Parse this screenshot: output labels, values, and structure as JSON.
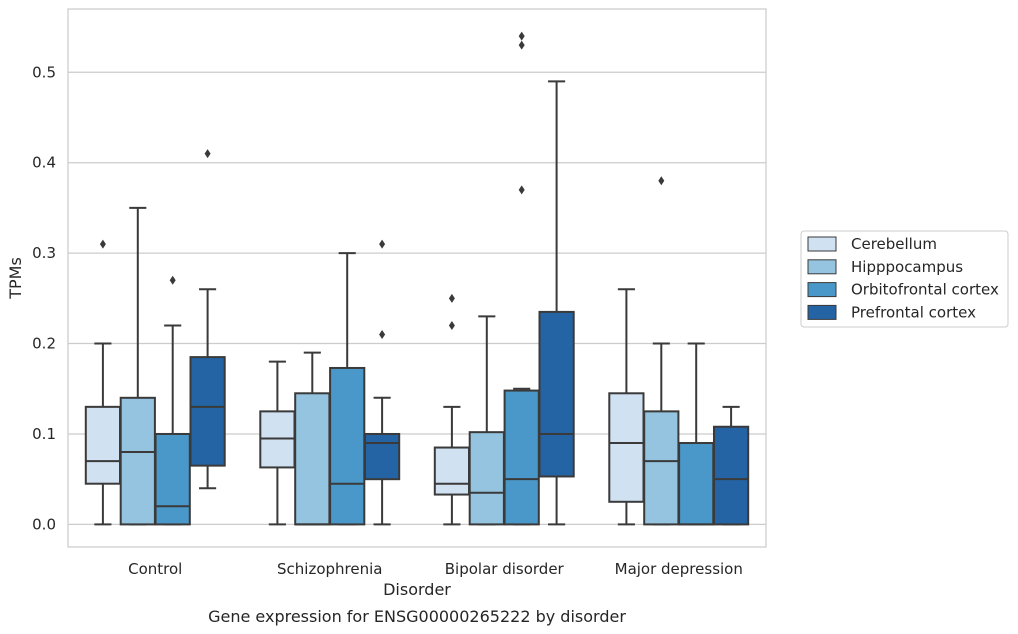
{
  "chart_data": {
    "type": "box",
    "title": "Gene expression for ENSG00000265222 by disorder",
    "xlabel": "Disorder",
    "ylabel": "TPMs",
    "ylim": [
      -0.025,
      0.57
    ],
    "yticks": [
      "0.0",
      "0.1",
      "0.2",
      "0.3",
      "0.4",
      "0.5"
    ],
    "categories": [
      "Control",
      "Schizophrenia",
      "Bipolar disorder",
      "Major depression"
    ],
    "grid": "horizontal",
    "legend_position": "right",
    "series": [
      {
        "name": "Cerebellum",
        "color": "#d0e1f2",
        "boxes": [
          {
            "whislo": 0.0,
            "q1": 0.045,
            "med": 0.07,
            "q3": 0.13,
            "whishi": 0.2,
            "fliers": [
              0.31
            ]
          },
          {
            "whislo": 0.0,
            "q1": 0.063,
            "med": 0.095,
            "q3": 0.125,
            "whishi": 0.18,
            "fliers": []
          },
          {
            "whislo": 0.0,
            "q1": 0.033,
            "med": 0.045,
            "q3": 0.085,
            "whishi": 0.13,
            "fliers": [
              0.22,
              0.25
            ]
          },
          {
            "whislo": 0.0,
            "q1": 0.025,
            "med": 0.09,
            "q3": 0.145,
            "whishi": 0.26,
            "fliers": []
          }
        ]
      },
      {
        "name": "Hipppocampus",
        "color": "#94c4df",
        "boxes": [
          {
            "whislo": 0.0,
            "q1": 0.0,
            "med": 0.08,
            "q3": 0.14,
            "whishi": 0.35,
            "fliers": []
          },
          {
            "whislo": 0.0,
            "q1": 0.0,
            "med": 0.0,
            "q3": 0.145,
            "whishi": 0.19,
            "fliers": []
          },
          {
            "whislo": 0.0,
            "q1": 0.0,
            "med": 0.035,
            "q3": 0.102,
            "whishi": 0.23,
            "fliers": []
          },
          {
            "whislo": 0.0,
            "q1": 0.0,
            "med": 0.07,
            "q3": 0.125,
            "whishi": 0.2,
            "fliers": [
              0.38
            ]
          }
        ]
      },
      {
        "name": "Orbitofrontal cortex",
        "color": "#4a98c9",
        "boxes": [
          {
            "whislo": 0.0,
            "q1": 0.0,
            "med": 0.02,
            "q3": 0.1,
            "whishi": 0.22,
            "fliers": [
              0.27
            ]
          },
          {
            "whislo": 0.0,
            "q1": 0.0,
            "med": 0.045,
            "q3": 0.173,
            "whishi": 0.3,
            "fliers": []
          },
          {
            "whislo": 0.0,
            "q1": 0.0,
            "med": 0.05,
            "q3": 0.148,
            "whishi": 0.15,
            "fliers": [
              0.37,
              0.53,
              0.54
            ]
          },
          {
            "whislo": 0.0,
            "q1": 0.0,
            "med": 0.0,
            "q3": 0.09,
            "whishi": 0.2,
            "fliers": []
          }
        ]
      },
      {
        "name": "Prefrontal cortex",
        "color": "#2464a4",
        "boxes": [
          {
            "whislo": 0.04,
            "q1": 0.065,
            "med": 0.13,
            "q3": 0.185,
            "whishi": 0.26,
            "fliers": [
              0.41
            ]
          },
          {
            "whislo": 0.0,
            "q1": 0.05,
            "med": 0.09,
            "q3": 0.1,
            "whishi": 0.14,
            "fliers": [
              0.21,
              0.31
            ]
          },
          {
            "whislo": 0.0,
            "q1": 0.053,
            "med": 0.1,
            "q3": 0.235,
            "whishi": 0.49,
            "fliers": []
          },
          {
            "whislo": 0.0,
            "q1": 0.0,
            "med": 0.05,
            "q3": 0.108,
            "whishi": 0.13,
            "fliers": []
          }
        ]
      }
    ]
  }
}
